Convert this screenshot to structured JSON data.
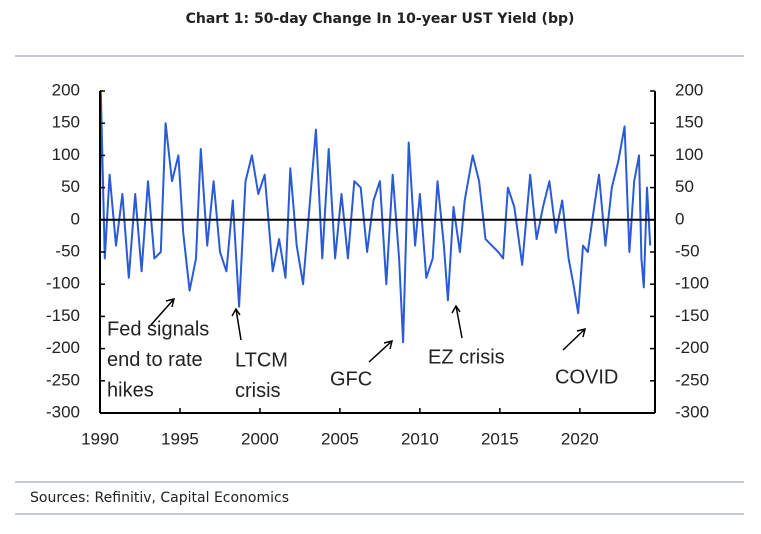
{
  "chart_data": {
    "type": "line",
    "title": "Chart 1: 50-day Change In 10-year UST Yield (bp)",
    "source": "Sources: Refinitiv, Capital Economics",
    "x": [
      1990,
      1990.05,
      1990.3,
      1990.6,
      1991,
      1991.4,
      1991.8,
      1992.2,
      1992.6,
      1993,
      1993.4,
      1993.8,
      1994.1,
      1994.5,
      1994.9,
      1995.2,
      1995.6,
      1996,
      1996.3,
      1996.7,
      1997.1,
      1997.5,
      1997.9,
      1998.3,
      1998.7,
      1999.1,
      1999.5,
      1999.9,
      2000.3,
      2000.8,
      2001.2,
      2001.6,
      2001.9,
      2002.3,
      2002.7,
      2003.1,
      2003.5,
      2003.9,
      2004.3,
      2004.7,
      2005.1,
      2005.5,
      2005.9,
      2006.3,
      2006.7,
      2007.1,
      2007.5,
      2007.9,
      2008.3,
      2008.7,
      2008.95,
      2009.3,
      2009.7,
      2010,
      2010.4,
      2010.8,
      2011.1,
      2011.5,
      2011.75,
      2012.1,
      2012.5,
      2012.8,
      2013.3,
      2013.7,
      2014.1,
      2014.5,
      2014.9,
      2015.2,
      2015.5,
      2015.9,
      2016.4,
      2016.9,
      2017.3,
      2017.7,
      2018.1,
      2018.5,
      2018.9,
      2019.3,
      2019.6,
      2019.9,
      2020.2,
      2020.5,
      2020.9,
      2021.2,
      2021.6,
      2022,
      2022.4,
      2022.8,
      2023.1,
      2023.4,
      2023.7,
      2023.85,
      2024,
      2024.2,
      2024.4
    ],
    "series": [
      {
        "color": "#2a5bd7",
        "values": [
          0,
          200,
          -60,
          70,
          -40,
          40,
          -90,
          40,
          -80,
          60,
          -60,
          -50,
          150,
          60,
          100,
          -20,
          -110,
          -60,
          110,
          -40,
          60,
          -50,
          -80,
          30,
          -135,
          60,
          100,
          40,
          70,
          -80,
          -30,
          -90,
          80,
          -40,
          -100,
          20,
          140,
          -60,
          110,
          -60,
          40,
          -60,
          60,
          50,
          -50,
          30,
          60,
          -100,
          70,
          -60,
          -190,
          120,
          -40,
          40,
          -90,
          -60,
          60,
          -40,
          -125,
          20,
          -50,
          30,
          100,
          60,
          -30,
          -40,
          -50,
          -60,
          50,
          20,
          -70,
          70,
          -30,
          20,
          60,
          -20,
          30,
          -60,
          -100,
          -145,
          -40,
          -50,
          20,
          70,
          -40,
          50,
          90,
          145,
          -50,
          60,
          100,
          -60,
          -105,
          50,
          -40
        ]
      }
    ],
    "xlim": [
      1990,
      2024.7
    ],
    "xticks": [
      1990,
      1995,
      2000,
      2005,
      2010,
      2015,
      2020
    ],
    "ylim": [
      -300,
      200
    ],
    "yticks": [
      -300,
      -250,
      -200,
      -150,
      -100,
      -50,
      0,
      50,
      100,
      150,
      200
    ],
    "annotations": [
      {
        "lines": [
          "Fed signals",
          "end to rate",
          "hikes"
        ]
      },
      {
        "lines": [
          "LTCM",
          "crisis"
        ]
      },
      {
        "lines": [
          "GFC"
        ]
      },
      {
        "lines": [
          "EZ crisis"
        ]
      },
      {
        "lines": [
          "COVID"
        ]
      }
    ]
  }
}
